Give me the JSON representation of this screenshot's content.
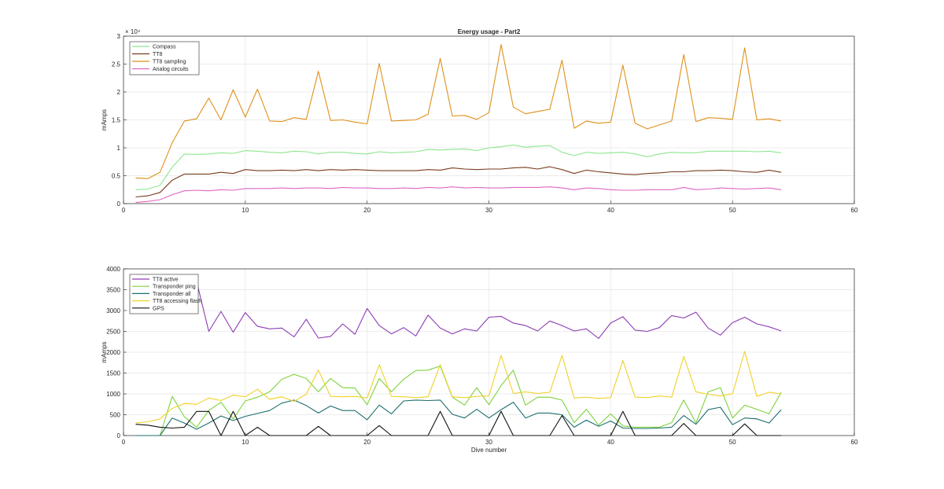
{
  "chart_data": [
    {
      "type": "line",
      "title": "Energy usage - Part2",
      "xlabel": "",
      "ylabel": "mAmps",
      "xlim": [
        0,
        60
      ],
      "ylim": [
        0,
        30000
      ],
      "xticks": [
        "0",
        "10",
        "20",
        "30",
        "40",
        "50",
        "60"
      ],
      "yticks": [
        "0",
        "0.5",
        "1",
        "1.5",
        "2",
        "2.5",
        "3"
      ],
      "y_exponent": "× 10⁴",
      "grid": true,
      "legend_position": "top-left",
      "x": [
        1,
        2,
        3,
        4,
        5,
        6,
        7,
        8,
        9,
        10,
        11,
        12,
        13,
        14,
        15,
        16,
        17,
        18,
        19,
        20,
        21,
        22,
        23,
        24,
        25,
        26,
        27,
        28,
        29,
        30,
        31,
        32,
        33,
        34,
        35,
        36,
        37,
        38,
        39,
        40,
        41,
        42,
        43,
        44,
        45,
        46,
        47,
        48,
        49,
        50,
        51,
        52,
        53,
        54
      ],
      "series": [
        {
          "name": "Compass",
          "color": "#8ee68e",
          "values": [
            2500,
            2600,
            3300,
            6500,
            8900,
            8800,
            8900,
            9100,
            9000,
            9500,
            9400,
            9200,
            9100,
            9400,
            9300,
            8900,
            9200,
            9200,
            9000,
            8900,
            9300,
            9100,
            9200,
            9300,
            9700,
            9600,
            9700,
            9800,
            9500,
            10000,
            10200,
            10500,
            10100,
            10300,
            10400,
            9200,
            8600,
            9200,
            9000,
            9100,
            9200,
            8900,
            8400,
            8900,
            9200,
            9100,
            9100,
            9400,
            9400,
            9400,
            9400,
            9300,
            9400,
            9100
          ]
        },
        {
          "name": "TT8",
          "color": "#7a3b1e",
          "values": [
            1200,
            1400,
            2000,
            4200,
            5300,
            5300,
            5300,
            5600,
            5400,
            6100,
            5900,
            5900,
            6000,
            5900,
            6100,
            5900,
            6100,
            6000,
            6100,
            6000,
            5900,
            5900,
            5900,
            5900,
            6100,
            6000,
            6400,
            6200,
            6100,
            6200,
            6200,
            6400,
            6500,
            6200,
            6600,
            6100,
            5400,
            6000,
            5700,
            5500,
            5300,
            5200,
            5400,
            5500,
            5700,
            5700,
            5900,
            5900,
            6000,
            5900,
            5700,
            5600,
            6000,
            5600
          ]
        },
        {
          "name": "TT8 sampling",
          "color": "#e0901a",
          "values": [
            4600,
            4500,
            5600,
            10900,
            14800,
            15200,
            18900,
            15000,
            20400,
            15500,
            20500,
            14800,
            14700,
            15400,
            15100,
            23700,
            14900,
            15000,
            14600,
            14300,
            25100,
            14800,
            14900,
            15000,
            16000,
            26000,
            15700,
            15800,
            15100,
            16300,
            28500,
            17300,
            16100,
            16500,
            16900,
            25700,
            13500,
            14800,
            14400,
            14600,
            24800,
            14400,
            13400,
            14100,
            14800,
            26700,
            14700,
            15400,
            15300,
            15100,
            27900,
            15000,
            15200,
            14800
          ]
        },
        {
          "name": "Analog circuits",
          "color": "#e066c4",
          "values": [
            200,
            400,
            700,
            1600,
            2300,
            2400,
            2300,
            2500,
            2400,
            2700,
            2700,
            2700,
            2800,
            2700,
            2800,
            2800,
            2700,
            2900,
            2800,
            2800,
            2700,
            2700,
            2800,
            2700,
            2900,
            2800,
            3000,
            2800,
            2900,
            2800,
            2800,
            2900,
            2900,
            2900,
            3000,
            2800,
            2500,
            2800,
            2700,
            2500,
            2400,
            2400,
            2500,
            2500,
            2500,
            2900,
            2500,
            2600,
            2800,
            2700,
            2600,
            2700,
            2800,
            2500
          ]
        }
      ]
    },
    {
      "type": "line",
      "title": "",
      "xlabel": "Dive number",
      "ylabel": "mAmps",
      "xlim": [
        0,
        60
      ],
      "ylim": [
        0,
        4000
      ],
      "xticks": [
        "0",
        "10",
        "20",
        "30",
        "40",
        "50",
        "60"
      ],
      "yticks": [
        "0",
        "500",
        "1000",
        "1500",
        "2000",
        "2500",
        "3000",
        "3500",
        "4000"
      ],
      "grid": true,
      "legend_position": "top-left",
      "x": [
        1,
        2,
        3,
        4,
        5,
        6,
        7,
        8,
        9,
        10,
        11,
        12,
        13,
        14,
        15,
        16,
        17,
        18,
        19,
        20,
        21,
        22,
        23,
        24,
        25,
        26,
        27,
        28,
        29,
        30,
        31,
        32,
        33,
        34,
        35,
        36,
        37,
        38,
        39,
        40,
        41,
        42,
        43,
        44,
        45,
        46,
        47,
        48,
        49,
        50,
        51,
        52,
        53,
        54
      ],
      "series": [
        {
          "name": "TT8 active",
          "color": "#8c3cb4",
          "values": [
            null,
            null,
            null,
            null,
            null,
            3700,
            2500,
            2980,
            2480,
            2950,
            2620,
            2560,
            2580,
            2370,
            2790,
            2340,
            2380,
            2680,
            2430,
            3050,
            2640,
            2440,
            2590,
            2390,
            2890,
            2580,
            2440,
            2560,
            2510,
            2840,
            2860,
            2700,
            2640,
            2510,
            2750,
            2640,
            2510,
            2560,
            2330,
            2700,
            2850,
            2530,
            2500,
            2590,
            2880,
            2820,
            2960,
            2580,
            2410,
            2710,
            2840,
            2680,
            2610,
            2510
          ]
        },
        {
          "name": "Transponder ping",
          "color": "#7ed23c",
          "values": [
            0,
            0,
            0,
            940,
            450,
            200,
            600,
            800,
            400,
            830,
            920,
            1050,
            1350,
            1470,
            1370,
            1050,
            1370,
            1150,
            1140,
            740,
            1370,
            1050,
            1350,
            1560,
            1570,
            1670,
            920,
            730,
            1150,
            740,
            1200,
            1570,
            730,
            920,
            920,
            850,
            310,
            630,
            250,
            520,
            230,
            200,
            200,
            200,
            310,
            850,
            300,
            1050,
            1150,
            420,
            730,
            630,
            520,
            1040
          ]
        },
        {
          "name": "Transponder all",
          "color": "#1e6e6e",
          "values": [
            0,
            0,
            0,
            420,
            300,
            150,
            300,
            470,
            360,
            460,
            530,
            600,
            780,
            850,
            720,
            540,
            710,
            600,
            600,
            380,
            730,
            520,
            830,
            850,
            840,
            850,
            510,
            420,
            630,
            420,
            620,
            800,
            420,
            540,
            540,
            500,
            200,
            370,
            220,
            350,
            180,
            170,
            170,
            180,
            200,
            480,
            270,
            620,
            680,
            260,
            420,
            400,
            300,
            620
          ]
        },
        {
          "name": "TT8 accessing flash",
          "color": "#f0d22a",
          "values": [
            300,
            330,
            400,
            650,
            770,
            750,
            900,
            840,
            970,
            930,
            1110,
            870,
            930,
            820,
            990,
            1570,
            940,
            930,
            940,
            900,
            1700,
            940,
            930,
            910,
            930,
            1700,
            930,
            910,
            940,
            950,
            1920,
            1010,
            1050,
            1010,
            1040,
            1920,
            900,
            920,
            890,
            910,
            1800,
            920,
            910,
            950,
            920,
            1900,
            1050,
            990,
            950,
            1000,
            2020,
            940,
            1040,
            1000
          ]
        },
        {
          "name": "GPS",
          "color": "#111111",
          "values": [
            270,
            250,
            200,
            180,
            200,
            580,
            580,
            0,
            580,
            0,
            200,
            0,
            0,
            0,
            0,
            220,
            0,
            0,
            0,
            0,
            240,
            0,
            0,
            0,
            0,
            580,
            0,
            0,
            0,
            0,
            580,
            0,
            0,
            0,
            0,
            480,
            0,
            0,
            0,
            0,
            580,
            0,
            0,
            0,
            0,
            290,
            0,
            0,
            0,
            0,
            280,
            0,
            0,
            0
          ]
        }
      ]
    }
  ]
}
